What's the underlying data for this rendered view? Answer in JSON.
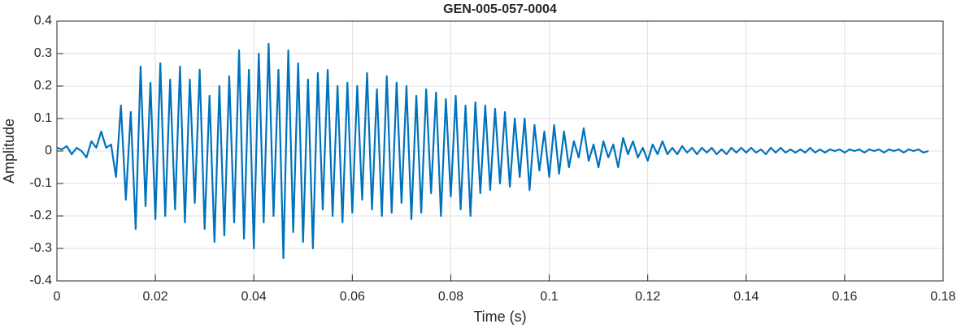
{
  "chart_data": {
    "type": "line",
    "title": "GEN-005-057-0004",
    "x_label": "Time (s)",
    "y_label": "Amplitude",
    "color": "#0072bd",
    "grid": true,
    "xlim": [
      0,
      0.18
    ],
    "xticks": [
      0,
      0.02,
      0.04,
      0.06,
      0.08,
      0.1,
      0.12,
      0.14,
      0.16,
      0.18
    ],
    "ylim": [
      -0.4,
      0.4
    ],
    "yticks": [
      -0.4,
      -0.3,
      -0.2,
      -0.1,
      0,
      0.1,
      0.2,
      0.3,
      0.4
    ],
    "x": [
      0,
      0.001,
      0.002,
      0.003,
      0.004,
      0.005,
      0.006,
      0.007,
      0.008,
      0.009,
      0.01,
      0.011,
      0.012,
      0.013,
      0.014,
      0.015,
      0.016,
      0.017,
      0.018,
      0.019,
      0.02,
      0.021,
      0.022,
      0.023,
      0.024,
      0.025,
      0.026,
      0.027,
      0.028,
      0.029,
      0.03,
      0.031,
      0.032,
      0.033,
      0.034,
      0.035,
      0.036,
      0.037,
      0.038,
      0.039,
      0.04,
      0.041,
      0.042,
      0.043,
      0.044,
      0.045,
      0.046,
      0.047,
      0.048,
      0.049,
      0.05,
      0.051,
      0.052,
      0.053,
      0.054,
      0.055,
      0.056,
      0.057,
      0.058,
      0.059,
      0.06,
      0.061,
      0.062,
      0.063,
      0.064,
      0.065,
      0.066,
      0.067,
      0.068,
      0.069,
      0.07,
      0.071,
      0.072,
      0.073,
      0.074,
      0.075,
      0.076,
      0.077,
      0.078,
      0.079,
      0.08,
      0.081,
      0.082,
      0.083,
      0.084,
      0.085,
      0.086,
      0.087,
      0.088,
      0.089,
      0.09,
      0.091,
      0.092,
      0.093,
      0.094,
      0.095,
      0.096,
      0.097,
      0.098,
      0.099,
      0.1,
      0.101,
      0.102,
      0.103,
      0.104,
      0.105,
      0.106,
      0.107,
      0.108,
      0.109,
      0.11,
      0.111,
      0.112,
      0.113,
      0.114,
      0.115,
      0.116,
      0.117,
      0.118,
      0.119,
      0.12,
      0.121,
      0.122,
      0.123,
      0.124,
      0.125,
      0.126,
      0.127,
      0.128,
      0.129,
      0.13,
      0.131,
      0.132,
      0.133,
      0.134,
      0.135,
      0.136,
      0.137,
      0.138,
      0.139,
      0.14,
      0.141,
      0.142,
      0.143,
      0.144,
      0.145,
      0.146,
      0.147,
      0.148,
      0.149,
      0.15,
      0.151,
      0.152,
      0.153,
      0.154,
      0.155,
      0.156,
      0.157,
      0.158,
      0.159,
      0.16,
      0.161,
      0.162,
      0.163,
      0.164,
      0.165,
      0.166,
      0.167,
      0.168,
      0.169,
      0.17,
      0.171,
      0.172,
      0.173,
      0.174,
      0.175,
      0.176,
      0.177
    ],
    "values": [
      0.01,
      0.005,
      0.015,
      -0.01,
      0.01,
      0,
      -0.02,
      0.03,
      0.01,
      0.06,
      0.01,
      0.02,
      -0.08,
      0.14,
      -0.15,
      0.12,
      -0.24,
      0.26,
      -0.17,
      0.21,
      -0.21,
      0.27,
      -0.2,
      0.22,
      -0.18,
      0.26,
      -0.22,
      0.22,
      -0.16,
      0.25,
      -0.24,
      0.17,
      -0.28,
      0.2,
      -0.26,
      0.23,
      -0.22,
      0.31,
      -0.27,
      0.25,
      -0.3,
      0.3,
      -0.22,
      0.33,
      -0.2,
      0.25,
      -0.33,
      0.31,
      -0.25,
      0.27,
      -0.28,
      0.22,
      -0.3,
      0.24,
      -0.18,
      0.25,
      -0.2,
      0.2,
      -0.22,
      0.21,
      -0.19,
      0.2,
      -0.15,
      0.24,
      -0.18,
      0.19,
      -0.2,
      0.23,
      -0.19,
      0.21,
      -0.16,
      0.2,
      -0.21,
      0.17,
      -0.19,
      0.19,
      -0.13,
      0.18,
      -0.2,
      0.16,
      -0.14,
      0.17,
      -0.18,
      0.14,
      -0.2,
      0.15,
      -0.13,
      0.14,
      -0.12,
      0.13,
      -0.1,
      0.12,
      -0.11,
      0.1,
      -0.08,
      0.1,
      -0.12,
      0.08,
      -0.06,
      0.06,
      -0.08,
      0.08,
      -0.07,
      0.06,
      -0.05,
      0.03,
      -0.02,
      0.07,
      -0.03,
      0.02,
      -0.05,
      0.03,
      -0.02,
      0.02,
      -0.05,
      0.04,
      -0.01,
      0.03,
      -0.02,
      0.01,
      -0.03,
      0.02,
      -0.01,
      0.03,
      -0.01,
      0.01,
      -0.01,
      0.015,
      -0.005,
      0.01,
      -0.01,
      0.01,
      -0.005,
      0.01,
      -0.01,
      0.005,
      -0.01,
      0.01,
      -0.005,
      0.01,
      -0.005,
      0.01,
      -0.005,
      0.005,
      -0.01,
      0.01,
      -0.005,
      0.01,
      -0.005,
      0.005,
      -0.005,
      0.005,
      -0.005,
      0.01,
      -0.005,
      0.005,
      -0.005,
      0.005,
      0,
      0.005,
      -0.005,
      0.005,
      0,
      0.005,
      -0.005,
      0.005,
      0,
      0.005,
      -0.005,
      0.005,
      0,
      0.005,
      -0.005,
      0.005,
      0,
      0.005,
      -0.005,
      0
    ]
  }
}
